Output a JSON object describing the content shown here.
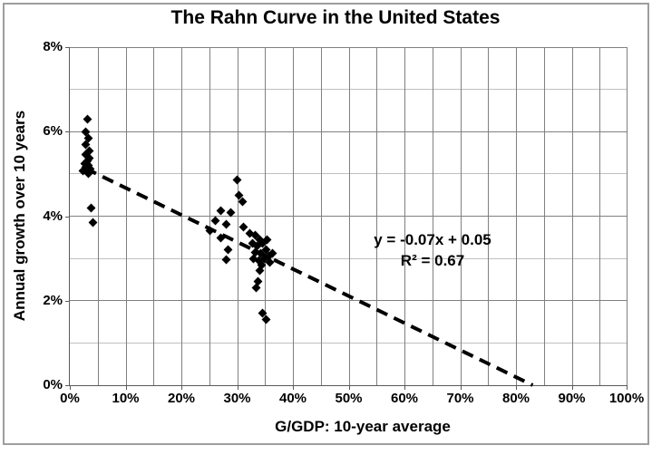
{
  "window": {
    "background": "#ffffff",
    "frame_border_color": "#9e9e9e"
  },
  "chart_data": {
    "type": "scatter",
    "title": "The Rahn Curve in the United States",
    "xlabel": "G/GDP: 10-year average",
    "ylabel": "Annual growth over 10 years",
    "xlim": [
      0,
      100
    ],
    "ylim": [
      0,
      8
    ],
    "x_tick_labels": [
      "0%",
      "10%",
      "20%",
      "30%",
      "40%",
      "50%",
      "60%",
      "70%",
      "80%",
      "90%",
      "100%"
    ],
    "y_tick_labels": [
      "0%",
      "2%",
      "4%",
      "6%",
      "8%"
    ],
    "x_major_step_pct": 10,
    "x_grid_step_pct": 5,
    "y_major_step_pct": 2,
    "y_minor_step_pct": 1,
    "grid": "on",
    "legend": "none",
    "marker": "diamond",
    "marker_color": "#000000",
    "major_grid_color": "#808080",
    "minor_grid_color": "#c0c0c0",
    "axis_color": "#595959",
    "points": [
      [
        3.2,
        6.3
      ],
      [
        2.9,
        6.0
      ],
      [
        3.3,
        5.85
      ],
      [
        2.8,
        5.7
      ],
      [
        3.5,
        5.55
      ],
      [
        2.9,
        5.45
      ],
      [
        3.5,
        5.38
      ],
      [
        3.2,
        5.3
      ],
      [
        2.7,
        5.25
      ],
      [
        3.4,
        5.2
      ],
      [
        2.9,
        5.15
      ],
      [
        3.6,
        5.12
      ],
      [
        3.1,
        5.08
      ],
      [
        2.4,
        5.08
      ],
      [
        3.3,
        5.0
      ],
      [
        3.9,
        4.2
      ],
      [
        4.1,
        3.85
      ],
      [
        30.0,
        4.85
      ],
      [
        30.4,
        4.5
      ],
      [
        31.0,
        4.35
      ],
      [
        27.0,
        4.12
      ],
      [
        28.8,
        4.08
      ],
      [
        26.1,
        3.9
      ],
      [
        28.1,
        3.8
      ],
      [
        31.2,
        3.75
      ],
      [
        25.2,
        3.65
      ],
      [
        27.0,
        3.48
      ],
      [
        28.3,
        3.2
      ],
      [
        28.0,
        2.97
      ],
      [
        32.3,
        3.6
      ],
      [
        33.2,
        3.55
      ],
      [
        34.0,
        3.45
      ],
      [
        32.7,
        3.35
      ],
      [
        33.6,
        3.3
      ],
      [
        34.6,
        3.35
      ],
      [
        35.4,
        3.45
      ],
      [
        33.2,
        3.15
      ],
      [
        34.2,
        3.12
      ],
      [
        35.2,
        3.2
      ],
      [
        32.9,
        3.0
      ],
      [
        33.9,
        2.95
      ],
      [
        34.9,
        3.0
      ],
      [
        35.7,
        3.05
      ],
      [
        36.3,
        3.12
      ],
      [
        34.4,
        2.85
      ],
      [
        35.9,
        2.9
      ],
      [
        34.1,
        2.72
      ],
      [
        33.8,
        2.45
      ],
      [
        33.4,
        2.3
      ],
      [
        34.6,
        1.7
      ],
      [
        35.2,
        1.55
      ]
    ],
    "trendline": {
      "style": "dashed",
      "color": "#000000",
      "x1": 2.8,
      "y1": 5.13,
      "x2": 83.0,
      "y2": 0.0,
      "equation": "y = -0.07x + 0.05",
      "r_squared": "R² = 0.67"
    }
  }
}
